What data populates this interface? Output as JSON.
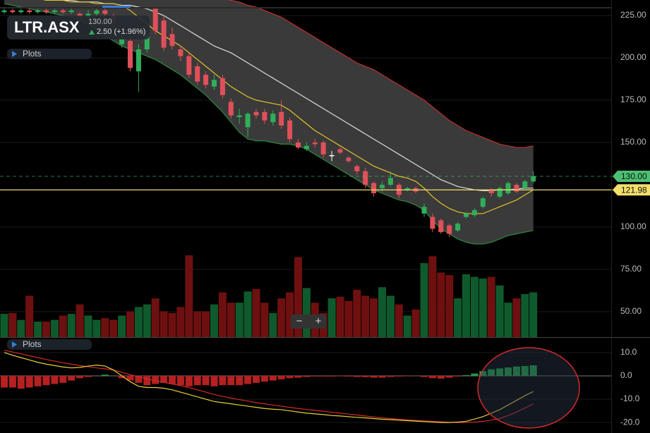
{
  "chart_data": {
    "type": "candlestick",
    "symbol": "LTR.ASX",
    "last": "130.00",
    "change": "2.50 (+1.96%)",
    "plots_label": "Plots",
    "volume_buttons": [
      "−",
      "+"
    ],
    "ylim": [
      35,
      234.17
    ],
    "yticks": [
      {
        "value": 225,
        "label": "225.00"
      },
      {
        "value": 200,
        "label": "200.00"
      },
      {
        "value": 175,
        "label": "175.00"
      },
      {
        "value": 150,
        "label": "150.00"
      },
      {
        "value": 100,
        "label": "100.00"
      },
      {
        "value": 75,
        "label": "75.00"
      },
      {
        "value": 50,
        "label": "50.00"
      }
    ],
    "grid": true,
    "up_color": "#2fae5a",
    "down_color": "#e0505a",
    "open": [
      227,
      228,
      227,
      228,
      227,
      228,
      227,
      228,
      227,
      226,
      224,
      226,
      228,
      225,
      208,
      210,
      192,
      205,
      229,
      222,
      214,
      205,
      201,
      195,
      190,
      183,
      188,
      174,
      165,
      159,
      168,
      168,
      162,
      168,
      163,
      150,
      146,
      150,
      150,
      142,
      146,
      141,
      136,
      133,
      126,
      123,
      125,
      125,
      122,
      123,
      108,
      106,
      104,
      101,
      98,
      106,
      107,
      112,
      122,
      118,
      120,
      125,
      123,
      127
    ],
    "high": [
      229,
      229,
      229,
      229,
      229,
      229,
      229,
      229,
      229,
      227,
      228,
      229,
      229,
      226,
      213,
      212,
      208,
      216,
      230,
      225,
      218,
      207,
      203,
      197,
      192,
      190,
      190,
      176,
      170,
      168,
      170,
      170,
      169,
      175,
      165,
      152,
      150,
      152,
      151,
      145,
      147,
      142,
      137,
      135,
      127,
      127,
      133,
      126,
      124,
      124,
      114,
      108,
      105,
      102,
      103,
      109,
      111,
      118,
      123,
      124,
      127,
      126,
      128,
      133
    ],
    "low": [
      226,
      226,
      226,
      226,
      226,
      226,
      226,
      226,
      226,
      222,
      223,
      225,
      224,
      220,
      206,
      192,
      180,
      203,
      214,
      204,
      205,
      198,
      188,
      184,
      182,
      181,
      176,
      164,
      161,
      153,
      164,
      161,
      160,
      158,
      150,
      146,
      145,
      147,
      141,
      139,
      143,
      138,
      131,
      123,
      118,
      121,
      124,
      117,
      121,
      120,
      106,
      97,
      96,
      94,
      97,
      105,
      106,
      111,
      118,
      117,
      119,
      120,
      122,
      126
    ],
    "close": [
      228,
      227,
      228,
      227,
      228,
      227,
      228,
      227,
      228,
      224,
      226,
      228,
      226,
      222,
      211,
      194,
      205,
      213,
      216,
      206,
      207,
      201,
      190,
      186,
      184,
      187,
      178,
      166,
      166,
      167,
      166,
      163,
      167,
      160,
      152,
      147,
      148,
      149,
      143,
      142.5,
      144,
      139,
      133,
      125,
      120,
      125,
      129,
      119,
      123,
      121,
      112,
      99,
      97,
      96,
      102,
      108,
      110,
      117,
      120,
      123,
      126,
      121,
      127,
      130
    ],
    "bands": {
      "fill": "#3a3a3a",
      "upper": {
        "color": "#c0302d",
        "values": [
          235,
          235,
          235,
          235,
          235,
          235,
          235,
          235,
          235,
          235,
          235,
          235,
          235,
          235,
          235,
          235,
          235,
          235,
          235,
          235,
          235,
          235,
          235,
          235,
          235,
          235,
          235,
          234,
          233,
          231,
          230,
          228,
          226,
          224,
          221,
          218,
          215,
          212,
          209,
          206,
          203,
          200,
          197,
          195,
          193,
          190,
          187,
          184,
          181,
          178,
          175,
          171,
          167,
          163,
          160,
          157,
          155,
          153,
          151,
          149,
          148,
          147,
          147,
          148
        ]
      },
      "lower": {
        "color": "#2a8a3c",
        "values": [
          232,
          231,
          230,
          229,
          228,
          227,
          226,
          225,
          224,
          222,
          220,
          217,
          213,
          210,
          207,
          205,
          203,
          201,
          199,
          196,
          193,
          190,
          186,
          182,
          178,
          173,
          168,
          162,
          156,
          152,
          151,
          151,
          150,
          149,
          149,
          148,
          146,
          143,
          140,
          137,
          134,
          131,
          128,
          125,
          122,
          120,
          118,
          116,
          115,
          113,
          110,
          104,
          99,
          96,
          93,
          91,
          90,
          90,
          91,
          93,
          95,
          96,
          97,
          98
        ]
      },
      "middle": {
        "color": "#dddddd",
        "values": [
          236,
          236,
          236,
          235,
          235,
          235,
          234,
          234,
          234,
          233,
          233,
          233,
          232,
          232,
          231,
          231,
          230,
          229,
          227,
          225,
          222,
          219,
          216,
          213,
          210,
          207,
          205,
          203,
          200,
          197,
          194,
          191,
          188,
          185,
          182,
          179,
          176,
          173,
          170,
          167,
          164,
          161,
          158,
          155,
          152,
          149,
          146,
          143,
          140,
          137,
          134,
          131,
          128,
          126,
          124,
          123,
          122,
          121.5,
          121.5,
          122,
          122,
          122.5,
          123,
          123
        ]
      },
      "ema": {
        "color": "#e6c229",
        "values": [
          236,
          236,
          235,
          235,
          235,
          234,
          234,
          234,
          233,
          233,
          233,
          232,
          232,
          232,
          231,
          228,
          224,
          220,
          216,
          213,
          210,
          207,
          203,
          199,
          195,
          191,
          187,
          183,
          180,
          177,
          175,
          174,
          173,
          172,
          169,
          165,
          161,
          157,
          154,
          151,
          148,
          145,
          142,
          139,
          136,
          134,
          132,
          130,
          129,
          127,
          123,
          118,
          114,
          111,
          109,
          108,
          108,
          108,
          110,
          112,
          114,
          116,
          119,
          122
        ]
      }
    },
    "price_lines": [
      {
        "value": 130,
        "label": "130.00",
        "color": "#4cbf72",
        "dashed": true
      },
      {
        "value": 121.98,
        "label": "121.98",
        "color": "#f3df6c",
        "dashed": false
      }
    ],
    "volume": {
      "values": [
        27,
        28,
        20,
        48,
        18,
        18,
        20,
        25,
        27,
        38,
        25,
        20,
        22,
        20,
        25,
        30,
        35,
        38,
        45,
        30,
        28,
        35,
        95,
        30,
        30,
        38,
        52,
        40,
        40,
        53,
        56,
        40,
        28,
        45,
        52,
        93,
        57,
        40,
        28,
        45,
        47,
        42,
        55,
        48,
        45,
        58,
        48,
        38,
        25,
        32,
        86,
        94,
        75,
        72,
        45,
        73,
        70,
        68,
        70,
        60,
        40,
        45,
        50,
        52
      ]
    },
    "indicator": {
      "ylim": [
        -24.5,
        16
      ],
      "yticks": [
        {
          "value": 10,
          "label": "10.0"
        },
        {
          "value": 0,
          "label": "0.0"
        },
        {
          "value": -10,
          "label": "-10.0"
        },
        {
          "value": -20,
          "label": "-20.0"
        }
      ],
      "histogram": [
        -5,
        -5,
        -5.5,
        -5,
        -4.5,
        -4,
        -3.5,
        -3,
        -2,
        -1,
        -0.5,
        0,
        0.5,
        0,
        -1,
        -2,
        -3,
        -4,
        -3.5,
        -3,
        -3.5,
        -4,
        -4.5,
        -4,
        -4,
        -4.5,
        -4,
        -4,
        -4,
        -3.5,
        -3,
        -2.5,
        -2,
        -1.5,
        -1,
        -0.8,
        -0.5,
        -0.3,
        -0.3,
        -0.3,
        -0.2,
        -0.3,
        -0.5,
        -0.6,
        -0.8,
        -0.8,
        -0.5,
        -0.3,
        -0.2,
        -0.1,
        -0.5,
        -1,
        -1.2,
        -0.8,
        -0.3,
        0.3,
        1,
        2,
        2.8,
        3.2,
        3.6,
        4,
        4.2,
        4.5
      ],
      "macd": {
        "color": "#e6d23a",
        "values": [
          10,
          8.8,
          7.8,
          6.8,
          5.8,
          5,
          4.4,
          3.8,
          3.4,
          3.6,
          4.2,
          4.6,
          4.2,
          2.5,
          0,
          -2.5,
          -4.5,
          -5,
          -5,
          -5.3,
          -6,
          -7,
          -8,
          -9,
          -10,
          -11,
          -11.5,
          -12,
          -12.5,
          -13,
          -13.5,
          -14,
          -14.3,
          -14.5,
          -15,
          -15.5,
          -16,
          -16.3,
          -16.6,
          -17,
          -17.2,
          -17.5,
          -17.8,
          -18,
          -18.3,
          -18.6,
          -18.8,
          -19,
          -19.2,
          -19.4,
          -19.6,
          -19.8,
          -20,
          -20,
          -19.8,
          -19.5,
          -18.5,
          -17.5,
          -16,
          -14.5,
          -12.5,
          -10.5,
          -8.5,
          -6.7
        ]
      },
      "signal": {
        "color": "#d42a2a",
        "values": [
          11,
          10.2,
          9.4,
          8.6,
          7.8,
          7,
          6.3,
          5.6,
          5,
          4.4,
          3.9,
          3.4,
          3,
          2.5,
          1.5,
          0.5,
          -0.5,
          -1.3,
          -2,
          -2.8,
          -3.5,
          -4.2,
          -5,
          -6,
          -7,
          -8,
          -8.8,
          -9.5,
          -10.2,
          -10.8,
          -11.5,
          -12,
          -12.5,
          -13,
          -13.5,
          -14,
          -14.4,
          -14.8,
          -15.2,
          -15.6,
          -16,
          -16.4,
          -16.8,
          -17.2,
          -17.6,
          -18,
          -18.3,
          -18.6,
          -18.9,
          -19.1,
          -19.3,
          -19.5,
          -19.7,
          -19.9,
          -20,
          -20,
          -19.8,
          -19.5,
          -19,
          -18.3,
          -17,
          -15.5,
          -13.8,
          -12
        ]
      }
    }
  }
}
